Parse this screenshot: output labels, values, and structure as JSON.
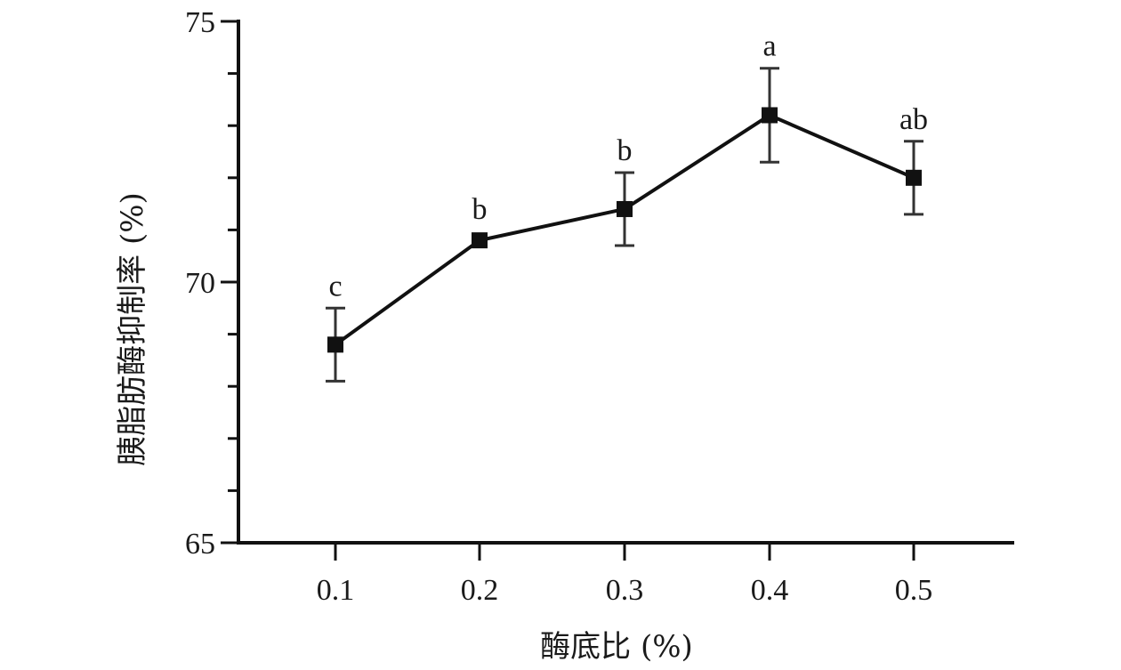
{
  "chart_data": {
    "type": "line",
    "title": "",
    "xlabel": "酶底比 (%)",
    "ylabel": "胰脂肪酶抑制率 (%)",
    "x": [
      0.1,
      0.2,
      0.3,
      0.4,
      0.5
    ],
    "x_tick_labels": [
      "0.1",
      "0.2",
      "0.3",
      "0.4",
      "0.5"
    ],
    "ylim": [
      65,
      75
    ],
    "y_major_ticks": [
      65,
      70,
      75
    ],
    "y_minor_ticks": [
      66,
      67,
      68,
      69,
      71,
      72,
      73,
      74
    ],
    "grid": false,
    "legend": "none",
    "marker": "square",
    "line_color": "#111111",
    "series": [
      {
        "values": [
          68.8,
          70.8,
          71.4,
          73.2,
          72.0
        ],
        "error": [
          0.7,
          0.0,
          0.7,
          0.9,
          0.7
        ],
        "labels": [
          "c",
          "b",
          "b",
          "a",
          "ab"
        ]
      }
    ]
  }
}
